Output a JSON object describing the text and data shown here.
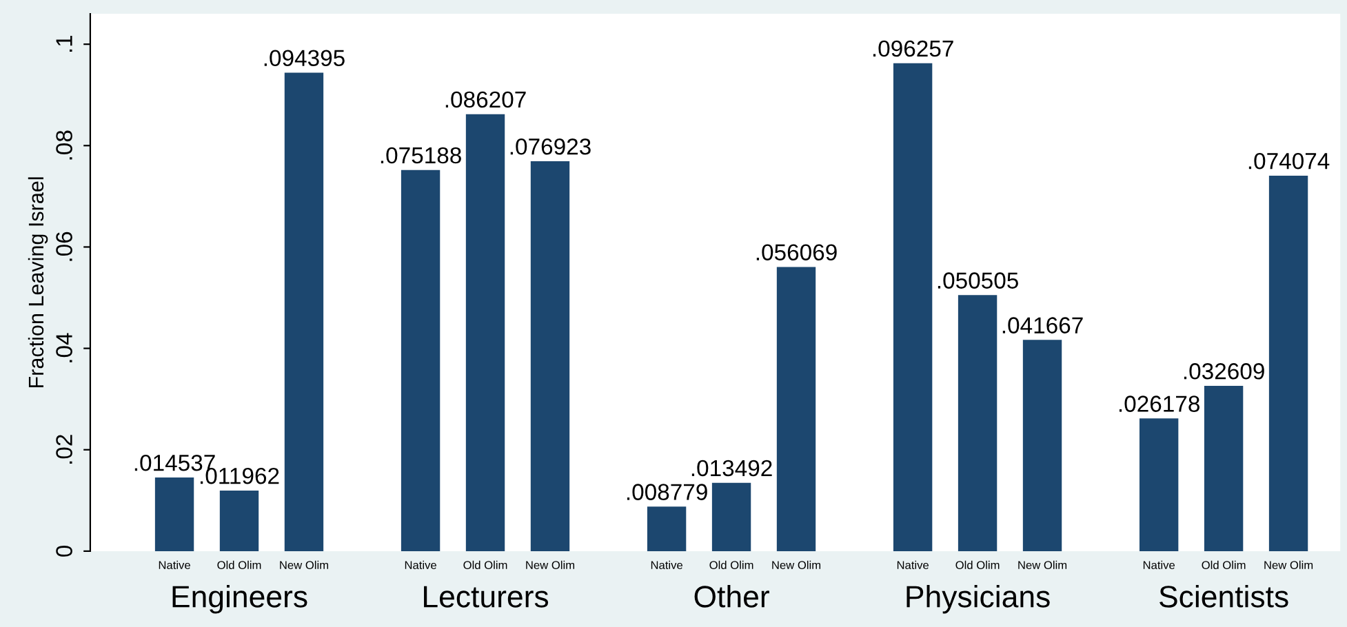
{
  "chart_data": {
    "type": "bar",
    "ylabel": "Fraction Leaving Israel",
    "categories": [
      "Native",
      "Old Olim",
      "New Olim",
      "Native",
      "Old Olim",
      "New Olim",
      "Native",
      "Old Olim",
      "New Olim",
      "Native",
      "Old Olim",
      "New Olim",
      "Native",
      "Old Olim",
      "New Olim"
    ],
    "values": [
      0.014537,
      0.011962,
      0.094395,
      0.075188,
      0.086207,
      0.076923,
      0.008779,
      0.013492,
      0.056069,
      0.096257,
      0.050505,
      0.041667,
      0.026178,
      0.032609,
      0.074074
    ],
    "value_labels": [
      ".014537",
      ".011962",
      ".094395",
      ".075188",
      ".086207",
      ".076923",
      ".008779",
      ".013492",
      ".056069",
      ".096257",
      ".050505",
      ".041667",
      ".026178",
      ".032609",
      ".074074"
    ],
    "color": "#1c476f",
    "annotations": [
      "Engineers",
      "Lecturers",
      "Other",
      "Physicians",
      "Scientists"
    ],
    "ylim": [
      0,
      0.106
    ],
    "yticks": [
      0,
      {
        "value": 0.02,
        "label": ".02"
      },
      {
        "value": 0.04,
        "label": ".04"
      },
      {
        "value": 0.06,
        "label": ".06"
      },
      {
        "value": 0.08,
        "label": ".08"
      },
      {
        "value": 0.1,
        "label": ".1"
      }
    ],
    "grid": false,
    "legend": false
  }
}
